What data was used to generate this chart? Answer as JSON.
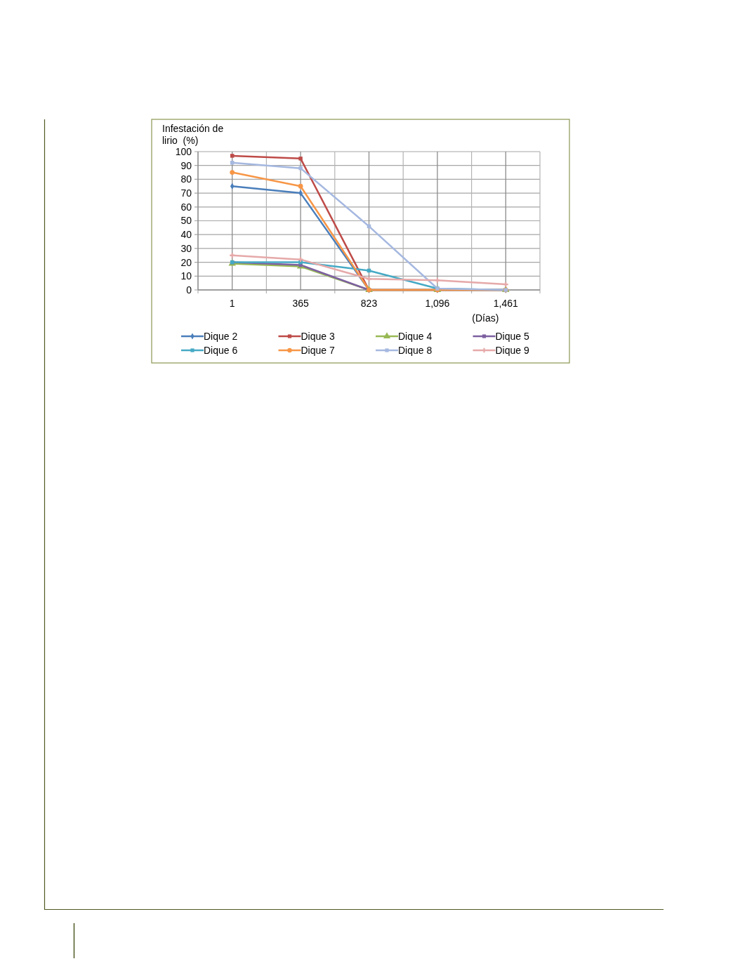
{
  "chart_data": {
    "type": "line",
    "ylabel": "Infestación de\nlirio  (%)",
    "xlabel": "(Días)",
    "categories": [
      "1",
      "365",
      "823",
      "1,096",
      "1,461"
    ],
    "ylim": [
      0,
      100
    ],
    "yticks": [
      0,
      10,
      20,
      30,
      40,
      50,
      60,
      70,
      80,
      90,
      100
    ],
    "grid": true,
    "legend": "bottom",
    "line_style": "solid",
    "series": [
      {
        "name": "Dique 2",
        "color": "#4a7ebb",
        "marker": "diamond",
        "values": [
          75,
          70,
          0,
          0,
          0
        ]
      },
      {
        "name": "Dique 3",
        "color": "#be4b48",
        "marker": "square",
        "values": [
          97,
          95,
          0,
          0,
          0
        ]
      },
      {
        "name": "Dique 4",
        "color": "#98b954",
        "marker": "triangle",
        "values": [
          19,
          17,
          0,
          0,
          0
        ]
      },
      {
        "name": "Dique 5",
        "color": "#7d60a0",
        "marker": "square",
        "values": [
          20,
          18,
          0,
          0,
          0
        ]
      },
      {
        "name": "Dique 6",
        "color": "#46aac5",
        "marker": "square",
        "values": [
          20,
          20,
          14,
          1,
          0
        ]
      },
      {
        "name": "Dique 7",
        "color": "#f79646",
        "marker": "circle",
        "values": [
          85,
          75,
          0,
          0,
          0
        ]
      },
      {
        "name": "Dique 8",
        "color": "#a5b8e0",
        "marker": "square",
        "values": [
          92,
          88,
          46,
          1,
          0
        ]
      },
      {
        "name": "Dique 9",
        "color": "#e6a9a9",
        "marker": "cross",
        "values": [
          25,
          22,
          8,
          7,
          4
        ]
      }
    ]
  }
}
